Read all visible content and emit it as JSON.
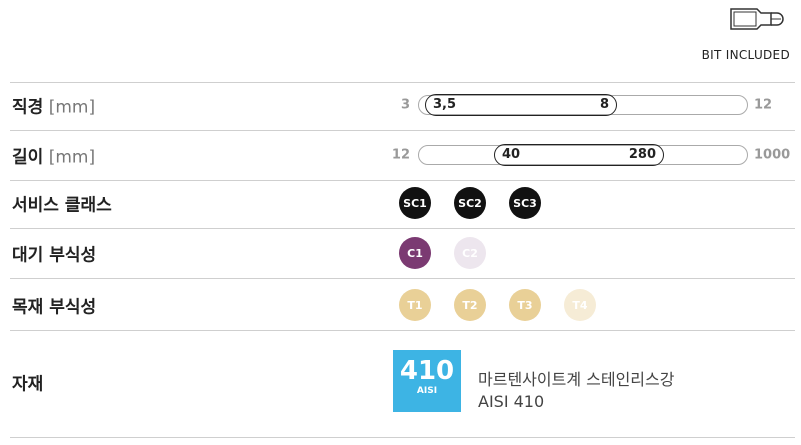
{
  "header": {
    "badge": "BIT INCLUDED"
  },
  "rows": [
    {
      "label": "직경",
      "unit": "[mm]",
      "range": {
        "min": "3",
        "low": "3,5",
        "high": "8",
        "max": "12"
      }
    },
    {
      "label": "길이",
      "unit": "[mm]",
      "range": {
        "min": "12",
        "low": "40",
        "high": "280",
        "max": "1000"
      }
    },
    {
      "label": "서비스 클래스",
      "badges": [
        {
          "text": "SC1",
          "active": true
        },
        {
          "text": "SC2",
          "active": true
        },
        {
          "text": "SC3",
          "active": true
        }
      ],
      "color": "#111111",
      "text_color": "#ffffff",
      "inactive_color": "#eeeeee"
    },
    {
      "label": "대기 부식성",
      "badges": [
        {
          "text": "C1",
          "active": true
        },
        {
          "text": "C2",
          "active": false
        }
      ],
      "color": "#7b3a72",
      "text_color": "#ffffff",
      "inactive_color": "#ede6ee"
    },
    {
      "label": "목재 부식성",
      "badges": [
        {
          "text": "T1",
          "active": true
        },
        {
          "text": "T2",
          "active": true
        },
        {
          "text": "T3",
          "active": true
        },
        {
          "text": "T4",
          "active": false
        }
      ],
      "color": "#e9d097",
      "text_color": "#ffffff",
      "inactive_color": "#f6ecd6"
    },
    {
      "label": "자재",
      "material": {
        "code": "410",
        "standard": "AISI",
        "name": "마르텐사이트계 스테인리스강",
        "spec": "AISI 410"
      }
    }
  ]
}
